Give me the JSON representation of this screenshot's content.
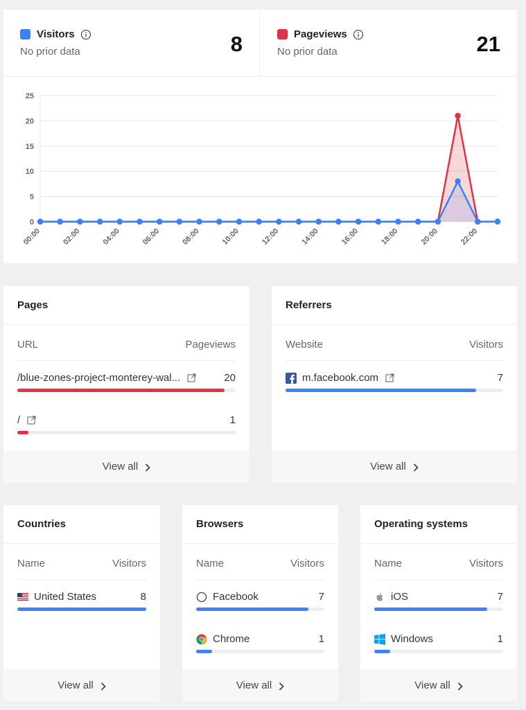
{
  "stats": {
    "visitors": {
      "label": "Visitors",
      "sub": "No prior data",
      "value": "8",
      "color": "#3b82f6"
    },
    "pageviews": {
      "label": "Pageviews",
      "sub": "No prior data",
      "value": "21",
      "color": "#dc3545"
    }
  },
  "chart_data": {
    "type": "area",
    "x": [
      "00:00",
      "01:00",
      "02:00",
      "03:00",
      "04:00",
      "05:00",
      "06:00",
      "07:00",
      "08:00",
      "09:00",
      "10:00",
      "11:00",
      "12:00",
      "13:00",
      "14:00",
      "15:00",
      "16:00",
      "17:00",
      "18:00",
      "19:00",
      "20:00",
      "21:00",
      "22:00",
      "23:00"
    ],
    "x_tick_labels": [
      "00:00",
      "02:00",
      "04:00",
      "06:00",
      "08:00",
      "10:00",
      "12:00",
      "14:00",
      "16:00",
      "18:00",
      "20:00",
      "22:00"
    ],
    "ylim": [
      0,
      25
    ],
    "y_ticks": [
      "0",
      "5",
      "10",
      "15",
      "20",
      "25"
    ],
    "grid": true,
    "series": [
      {
        "name": "Pageviews",
        "color": "#dc3545",
        "values": [
          0,
          0,
          0,
          0,
          0,
          0,
          0,
          0,
          0,
          0,
          0,
          0,
          0,
          0,
          0,
          0,
          0,
          0,
          0,
          0,
          0,
          21,
          0,
          0
        ]
      },
      {
        "name": "Visitors",
        "color": "#3b82f6",
        "values": [
          0,
          0,
          0,
          0,
          0,
          0,
          0,
          0,
          0,
          0,
          0,
          0,
          0,
          0,
          0,
          0,
          0,
          0,
          0,
          0,
          0,
          8,
          0,
          0
        ]
      }
    ]
  },
  "pages": {
    "title": "Pages",
    "col_left": "URL",
    "col_right": "Pageviews",
    "rows": [
      {
        "label": "/blue-zones-project-monterey-wal...",
        "value": "20",
        "pct": 0.95,
        "color": "#dc3545"
      },
      {
        "label": "/",
        "value": "1",
        "pct": 0.05,
        "color": "#dc3545"
      }
    ],
    "view_all": "View all"
  },
  "referrers": {
    "title": "Referrers",
    "col_left": "Website",
    "col_right": "Visitors",
    "rows": [
      {
        "label": "m.facebook.com",
        "value": "7",
        "pct": 0.875,
        "color": "#3b82f6"
      }
    ],
    "view_all": "View all"
  },
  "countries": {
    "title": "Countries",
    "col_left": "Name",
    "col_right": "Visitors",
    "rows": [
      {
        "label": "United States",
        "value": "8",
        "pct": 1.0,
        "color": "#3b82f6"
      }
    ],
    "view_all": "View all"
  },
  "browsers": {
    "title": "Browsers",
    "col_left": "Name",
    "col_right": "Visitors",
    "rows": [
      {
        "label": "Facebook",
        "value": "7",
        "pct": 0.875,
        "color": "#3b82f6"
      },
      {
        "label": "Chrome",
        "value": "1",
        "pct": 0.125,
        "color": "#3b82f6"
      }
    ],
    "view_all": "View all"
  },
  "os": {
    "title": "Operating systems",
    "col_left": "Name",
    "col_right": "Visitors",
    "rows": [
      {
        "label": "iOS",
        "value": "7",
        "pct": 0.875,
        "color": "#3b82f6"
      },
      {
        "label": "Windows",
        "value": "1",
        "pct": 0.125,
        "color": "#3b82f6"
      }
    ],
    "view_all": "View all"
  }
}
